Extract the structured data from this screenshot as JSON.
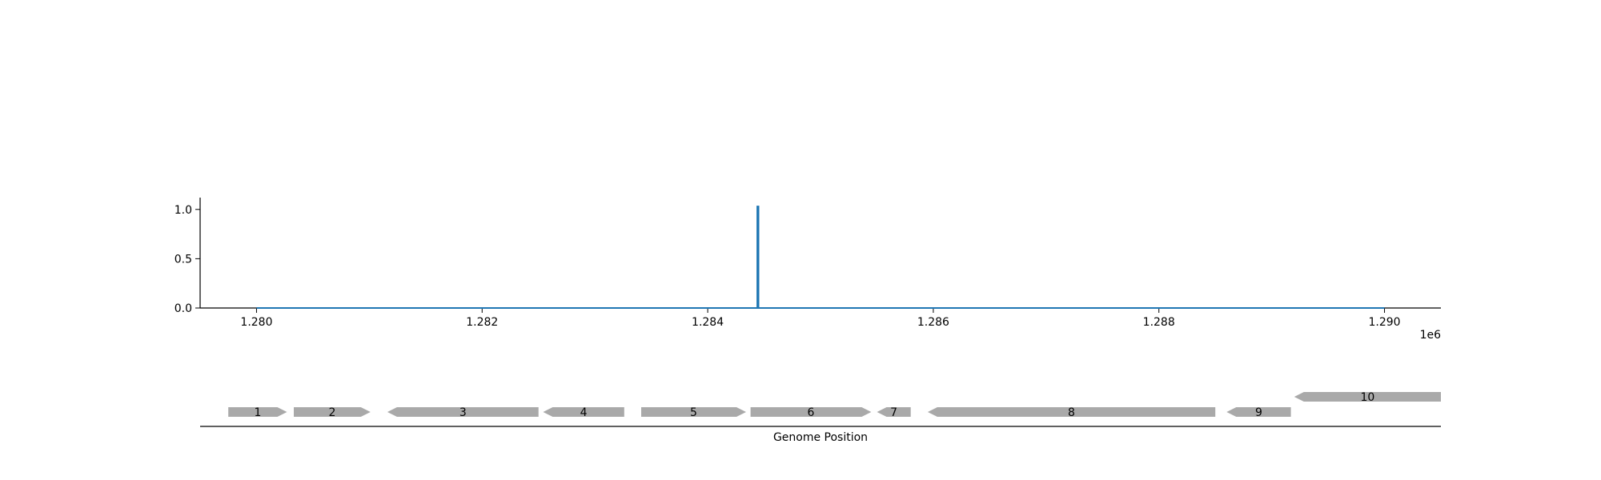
{
  "chart_data": {
    "type": "line",
    "title": "",
    "ylabel": "",
    "xlabel": "",
    "x_offset_label": "1e6",
    "xlim": [
      1279500,
      1290500
    ],
    "ylim": [
      0,
      1.12
    ],
    "x_ticks": [
      1280000,
      1282000,
      1284000,
      1286000,
      1288000,
      1290000
    ],
    "x_tick_labels": [
      "1.280",
      "1.282",
      "1.284",
      "1.286",
      "1.288",
      "1.290"
    ],
    "y_ticks": [
      0,
      0.5,
      1.0
    ],
    "y_tick_labels": [
      "0.0",
      "0.5",
      "1.0"
    ],
    "grid": false,
    "series": [
      {
        "color": "#1f77b4",
        "x": [
          1280000,
          1284440,
          1284440,
          1284450,
          1284450,
          1290000
        ],
        "y": [
          0,
          0,
          1.03,
          1.03,
          0,
          0
        ]
      }
    ],
    "gene_track": {
      "xlabel": "Genome Position",
      "color": "#a9a9a9",
      "genes": [
        {
          "label": "1",
          "start": 1279750,
          "end": 1280270,
          "strand": "+",
          "row": 0
        },
        {
          "label": "2",
          "start": 1280330,
          "end": 1281010,
          "strand": "+",
          "row": 0
        },
        {
          "label": "3",
          "start": 1281160,
          "end": 1282500,
          "strand": "-",
          "row": 0
        },
        {
          "label": "4",
          "start": 1282540,
          "end": 1283260,
          "strand": "-",
          "row": 0
        },
        {
          "label": "5",
          "start": 1283410,
          "end": 1284340,
          "strand": "+",
          "row": 0
        },
        {
          "label": "6",
          "start": 1284380,
          "end": 1285450,
          "strand": "+",
          "row": 0
        },
        {
          "label": "7",
          "start": 1285500,
          "end": 1285800,
          "strand": "-",
          "row": 0
        },
        {
          "label": "8",
          "start": 1285950,
          "end": 1288500,
          "strand": "-",
          "row": 0
        },
        {
          "label": "9",
          "start": 1288600,
          "end": 1289170,
          "strand": "-",
          "row": 0
        },
        {
          "label": "10",
          "start": 1289200,
          "end": 1290500,
          "strand": "-",
          "row": 1
        }
      ]
    }
  }
}
